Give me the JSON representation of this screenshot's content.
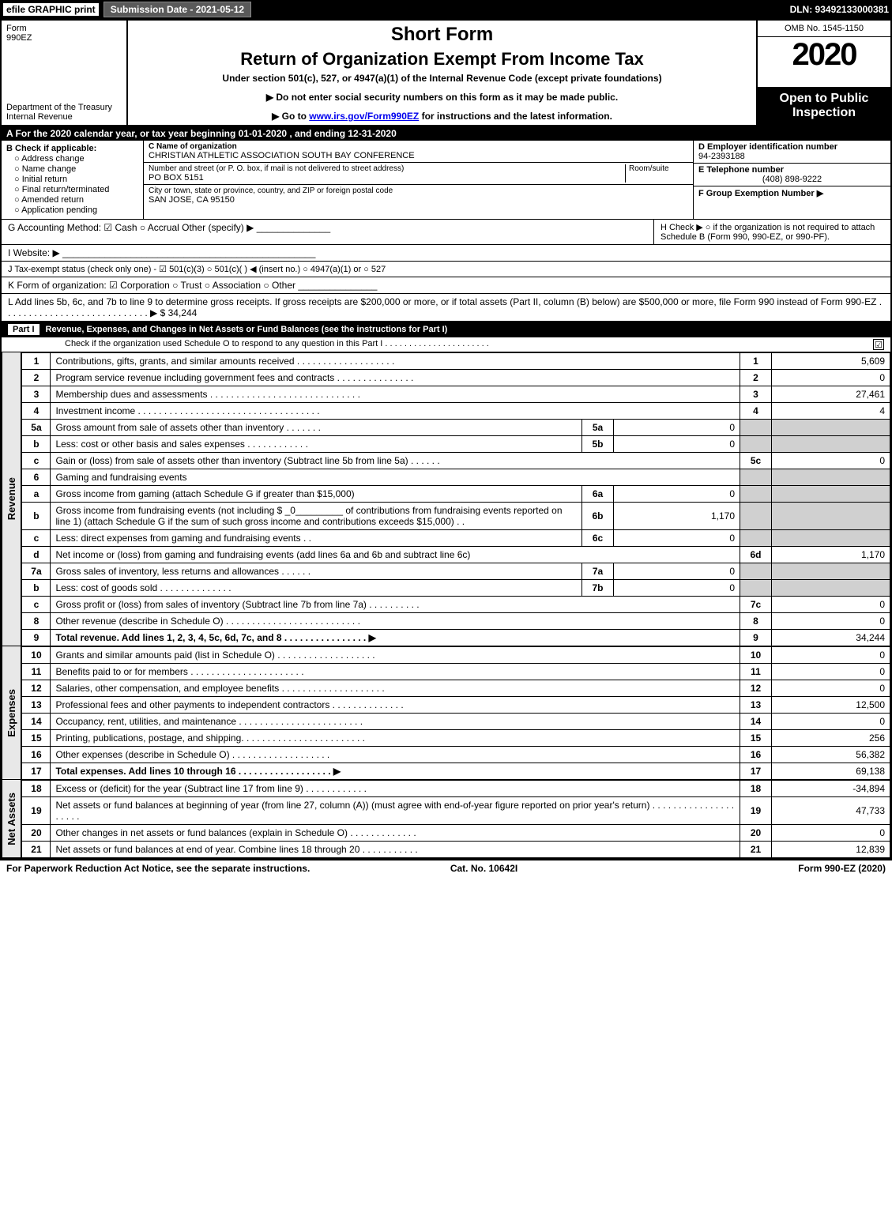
{
  "topbar": {
    "efile": "efile GRAPHIC print",
    "subdate": "Submission Date - 2021-05-12",
    "dln": "DLN: 93492133000381"
  },
  "header": {
    "form_label": "Form",
    "form_no": "990EZ",
    "dept": "Department of the Treasury Internal Revenue",
    "title1": "Short Form",
    "title2": "Return of Organization Exempt From Income Tax",
    "subtitle": "Under section 501(c), 527, or 4947(a)(1) of the Internal Revenue Code (except private foundations)",
    "notice1": "▶ Do not enter social security numbers on this form as it may be made public.",
    "notice2_pre": "▶ Go to ",
    "notice2_link": "www.irs.gov/Form990EZ",
    "notice2_post": " for instructions and the latest information.",
    "omb": "OMB No. 1545-1150",
    "year": "2020",
    "open": "Open to Public Inspection"
  },
  "a_row": "A  For the 2020 calendar year, or tax year beginning 01-01-2020 , and ending 12-31-2020",
  "b": {
    "title": "B  Check if applicable:",
    "items": [
      "Address change",
      "Name change",
      "Initial return",
      "Final return/terminated",
      "Amended return",
      "Application pending"
    ]
  },
  "c": {
    "name_lbl": "C Name of organization",
    "name": "CHRISTIAN ATHLETIC ASSOCIATION SOUTH BAY CONFERENCE",
    "addr_lbl": "Number and street (or P. O. box, if mail is not delivered to street address)",
    "room_lbl": "Room/suite",
    "addr": "PO BOX 5151",
    "city_lbl": "City or town, state or province, country, and ZIP or foreign postal code",
    "city": "SAN JOSE, CA  95150"
  },
  "d": {
    "ein_lbl": "D Employer identification number",
    "ein": "94-2393188",
    "tel_lbl": "E Telephone number",
    "tel": "(408) 898-9222",
    "grp_lbl": "F Group Exemption Number  ▶"
  },
  "g": "G Accounting Method:  ☑ Cash  ○ Accrual  Other (specify) ▶ ______________",
  "h": "H  Check ▶  ○  if the organization is not required to attach Schedule B (Form 990, 990-EZ, or 990-PF).",
  "i": "I Website: ▶ ________________________________________________",
  "j": "J Tax-exempt status (check only one) -  ☑ 501(c)(3)  ○  501(c)(  ) ◀ (insert no.)  ○  4947(a)(1) or  ○  527",
  "k": "K Form of organization:  ☑ Corporation  ○ Trust  ○ Association  ○ Other  _______________",
  "l_pre": "L Add lines 5b, 6c, and 7b to line 9 to determine gross receipts. If gross receipts are $200,000 or more, or if total assets (Part II, column (B) below) are $500,000 or more, file Form 990 instead of Form 990-EZ  .  .  .  .  .  .  .  .  .  .  .  .  .  .  .  .  .  .  .  .  .  .  .  .  .  .  .  .  ▶ $ ",
  "l_val": "34,244",
  "part1_title": "Revenue, Expenses, and Changes in Net Assets or Fund Balances (see the instructions for Part I)",
  "part1_sub": "Check if the organization used Schedule O to respond to any question in this Part I  .  .  .  .  .  .  .  .  .  .  .  .  .  .  .  .  .  .  .  .  .  .",
  "revenue": [
    {
      "n": "1",
      "desc": "Contributions, gifts, grants, and similar amounts received  .  .  .  .  .  .  .  .  .  .  .  .  .  .  .  .  .  .  .",
      "rn": "1",
      "rv": "5,609"
    },
    {
      "n": "2",
      "desc": "Program service revenue including government fees and contracts  .  .  .  .  .  .  .  .  .  .  .  .  .  .  .",
      "rn": "2",
      "rv": "0"
    },
    {
      "n": "3",
      "desc": "Membership dues and assessments  .  .  .  .  .  .  .  .  .  .  .  .  .  .  .  .  .  .  .  .  .  .  .  .  .  .  .  .  .",
      "rn": "3",
      "rv": "27,461"
    },
    {
      "n": "4",
      "desc": "Investment income  .  .  .  .  .  .  .  .  .  .  .  .  .  .  .  .  .  .  .  .  .  .  .  .  .  .  .  .  .  .  .  .  .  .  .",
      "rn": "4",
      "rv": "4"
    },
    {
      "n": "5a",
      "desc": "Gross amount from sale of assets other than inventory  .  .  .  .  .  .  .",
      "sn": "5a",
      "sv": "0",
      "shade": true
    },
    {
      "n": "b",
      "desc": "Less: cost or other basis and sales expenses  .  .  .  .  .  .  .  .  .  .  .  .",
      "sn": "5b",
      "sv": "0",
      "shade": true
    },
    {
      "n": "c",
      "desc": "Gain or (loss) from sale of assets other than inventory (Subtract line 5b from line 5a)  .  .  .  .  .  .",
      "rn": "5c",
      "rv": "0"
    },
    {
      "n": "6",
      "desc": "Gaming and fundraising events",
      "shade": true,
      "noval": true
    },
    {
      "n": "a",
      "desc": "Gross income from gaming (attach Schedule G if greater than $15,000)",
      "sn": "6a",
      "sv": "0",
      "shade": true
    },
    {
      "n": "b",
      "desc": "Gross income from fundraising events (not including $ _0_________ of contributions from fundraising events reported on line 1) (attach Schedule G if the sum of such gross income and contributions exceeds $15,000)      .   .",
      "sn": "6b",
      "sv": "1,170",
      "shade": true
    },
    {
      "n": "c",
      "desc": "Less: direct expenses from gaming and fundraising events      .   .",
      "sn": "6c",
      "sv": "0",
      "shade": true
    },
    {
      "n": "d",
      "desc": "Net income or (loss) from gaming and fundraising events (add lines 6a and 6b and subtract line 6c)",
      "rn": "6d",
      "rv": "1,170"
    },
    {
      "n": "7a",
      "desc": "Gross sales of inventory, less returns and allowances  .  .  .  .  .  .",
      "sn": "7a",
      "sv": "0",
      "shade": true
    },
    {
      "n": "b",
      "desc": "Less: cost of goods sold        .   .   .   .   .   .   .   .   .   .   .   .   .   .",
      "sn": "7b",
      "sv": "0",
      "shade": true
    },
    {
      "n": "c",
      "desc": "Gross profit or (loss) from sales of inventory (Subtract line 7b from line 7a)  .  .  .  .  .  .  .  .  .  .",
      "rn": "7c",
      "rv": "0"
    },
    {
      "n": "8",
      "desc": "Other revenue (describe in Schedule O)  .  .  .  .  .  .  .  .  .  .  .  .  .  .  .  .  .  .  .  .  .  .  .  .  .  .",
      "rn": "8",
      "rv": "0"
    },
    {
      "n": "9",
      "desc": "Total revenue. Add lines 1, 2, 3, 4, 5c, 6d, 7c, and 8   .   .   .   .   .   .   .   .   .   .   .   .   .   .   .   .   ▶",
      "rn": "9",
      "rv": "34,244",
      "bold": true
    }
  ],
  "expenses": [
    {
      "n": "10",
      "desc": "Grants and similar amounts paid (list in Schedule O)  .  .  .  .  .  .  .  .  .  .  .  .  .  .  .  .  .  .  .",
      "rn": "10",
      "rv": "0"
    },
    {
      "n": "11",
      "desc": "Benefits paid to or for members      .   .   .   .   .   .   .   .   .   .   .   .   .   .   .   .   .   .   .   .   .   .",
      "rn": "11",
      "rv": "0"
    },
    {
      "n": "12",
      "desc": "Salaries, other compensation, and employee benefits  .  .  .  .  .  .  .  .  .  .  .  .  .  .  .  .  .  .  .  .",
      "rn": "12",
      "rv": "0"
    },
    {
      "n": "13",
      "desc": "Professional fees and other payments to independent contractors  .  .  .  .  .  .  .  .  .  .  .  .  .  .",
      "rn": "13",
      "rv": "12,500"
    },
    {
      "n": "14",
      "desc": "Occupancy, rent, utilities, and maintenance  .  .  .  .  .  .  .  .  .  .  .  .  .  .  .  .  .  .  .  .  .  .  .  .",
      "rn": "14",
      "rv": "0"
    },
    {
      "n": "15",
      "desc": "Printing, publications, postage, and shipping.  .  .  .  .  .  .  .  .  .  .  .  .  .  .  .  .  .  .  .  .  .  .  .",
      "rn": "15",
      "rv": "256"
    },
    {
      "n": "16",
      "desc": "Other expenses (describe in Schedule O)      .   .   .   .   .   .   .   .   .   .   .   .   .   .   .   .   .   .   .",
      "rn": "16",
      "rv": "56,382"
    },
    {
      "n": "17",
      "desc": "Total expenses. Add lines 10 through 16      .   .   .   .   .   .   .   .   .   .   .   .   .   .   .   .   .   .   ▶",
      "rn": "17",
      "rv": "69,138",
      "bold": true
    }
  ],
  "netassets": [
    {
      "n": "18",
      "desc": "Excess or (deficit) for the year (Subtract line 17 from line 9)        .   .   .   .   .   .   .   .   .   .   .   .",
      "rn": "18",
      "rv": "-34,894"
    },
    {
      "n": "19",
      "desc": "Net assets or fund balances at beginning of year (from line 27, column (A)) (must agree with end-of-year figure reported on prior year's return)  .  .  .  .  .  .  .  .  .  .  .  .  .  .  .  .  .  .  .  .  .",
      "rn": "19",
      "rv": "47,733"
    },
    {
      "n": "20",
      "desc": "Other changes in net assets or fund balances (explain in Schedule O)  .  .  .  .  .  .  .  .  .  .  .  .  .",
      "rn": "20",
      "rv": "0"
    },
    {
      "n": "21",
      "desc": "Net assets or fund balances at end of year. Combine lines 18 through 20  .  .  .  .  .  .  .  .  .  .  .",
      "rn": "21",
      "rv": "12,839"
    }
  ],
  "side_labels": {
    "rev": "Revenue",
    "exp": "Expenses",
    "net": "Net Assets"
  },
  "footer": {
    "l": "For Paperwork Reduction Act Notice, see the separate instructions.",
    "c": "Cat. No. 10642I",
    "r": "Form 990-EZ (2020)"
  }
}
